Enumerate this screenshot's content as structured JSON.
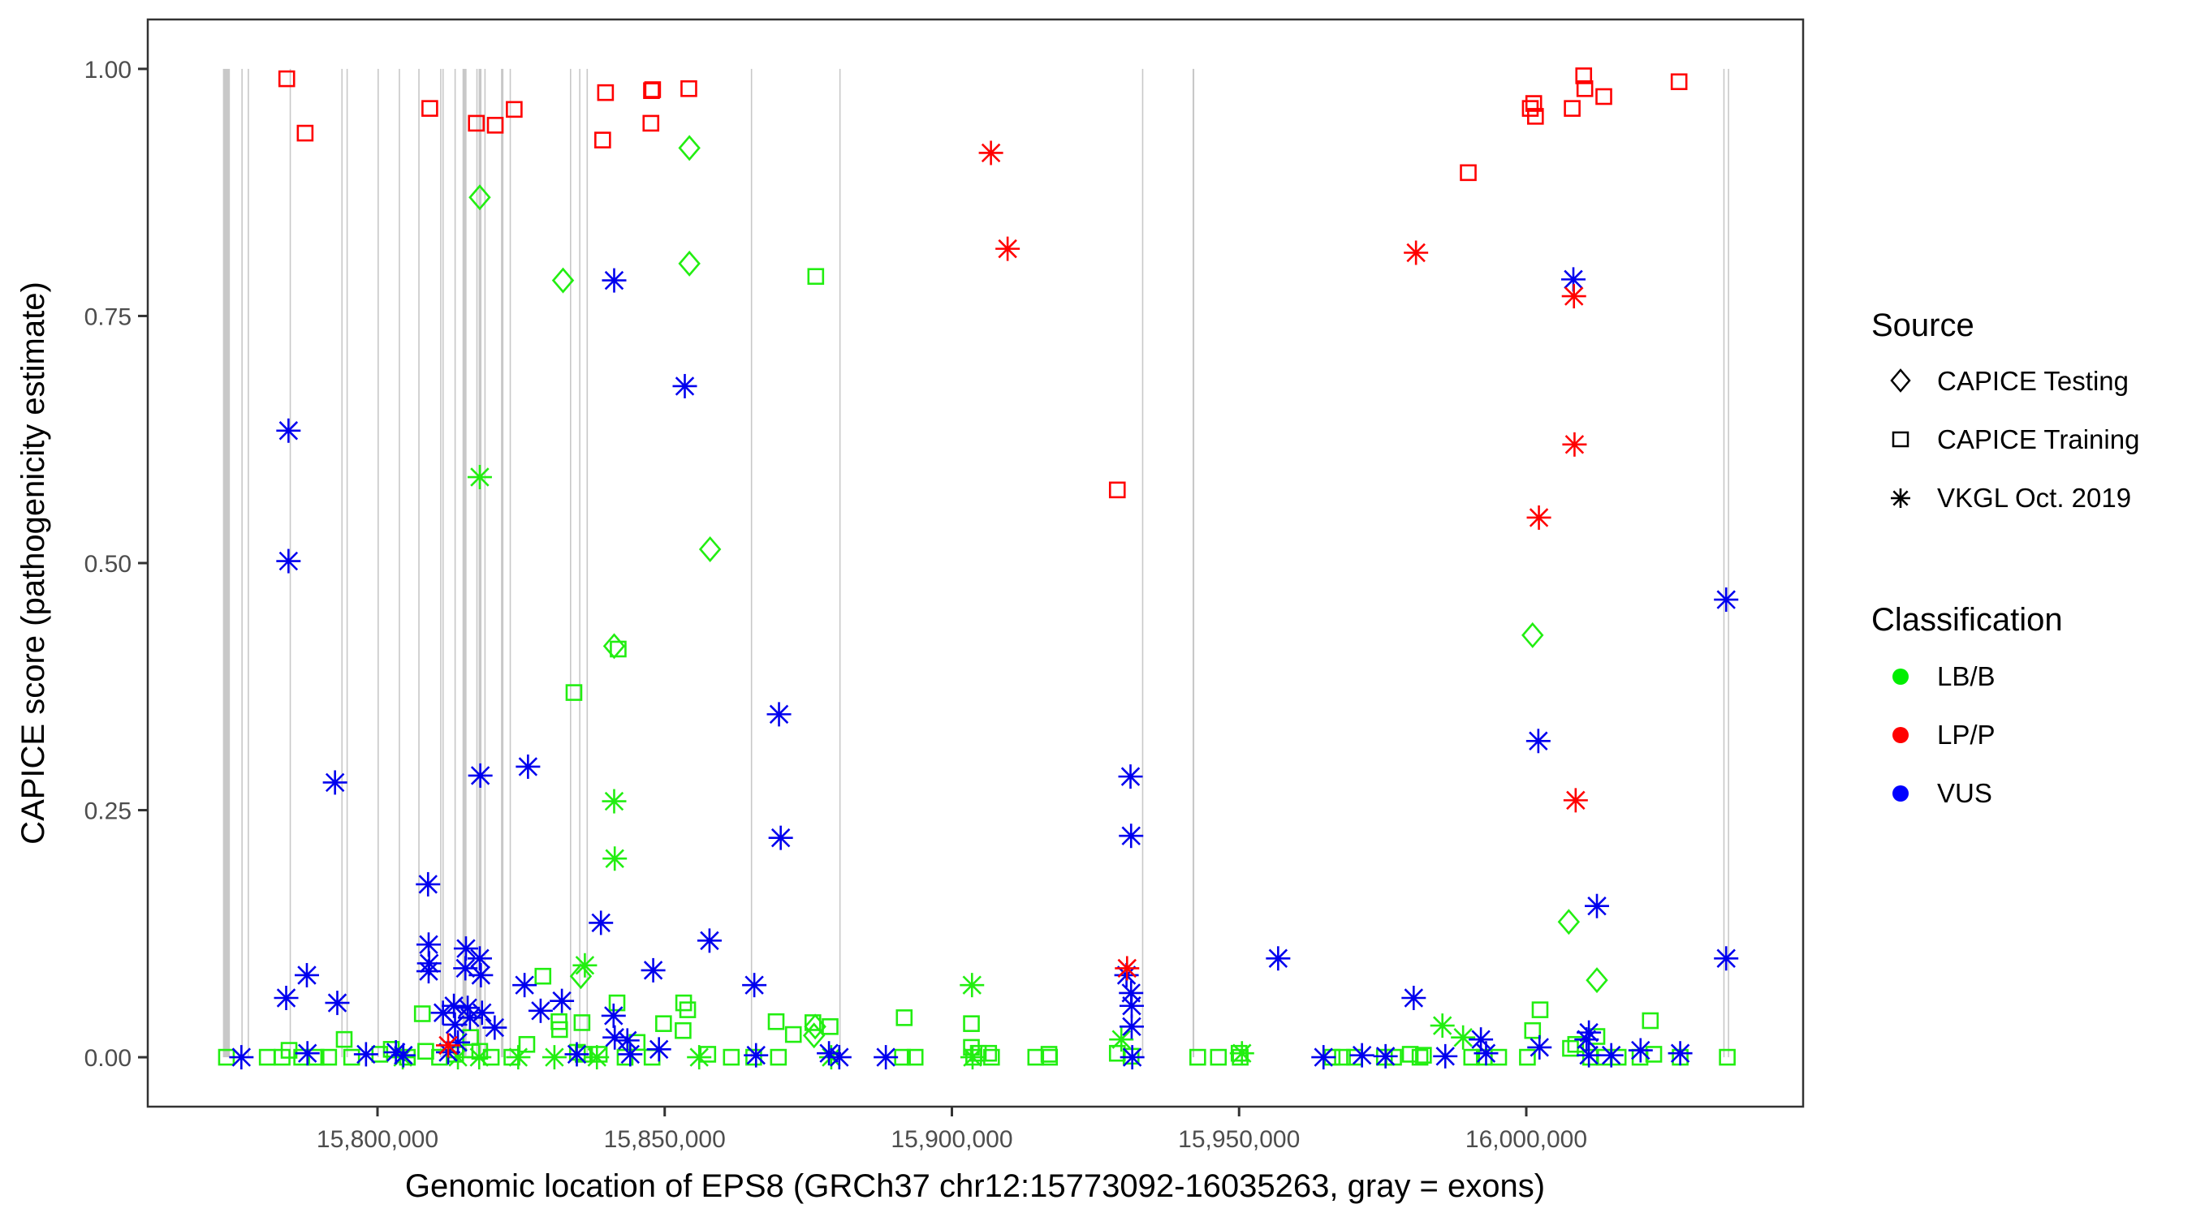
{
  "chart_data": {
    "type": "scatter",
    "title": "",
    "xlabel": "Genomic location of EPS8 (GRCh37 chr12:15773092-16035263, gray = exons)",
    "ylabel": "CAPICE score (pathogenicity estimate)",
    "xlim": [
      15760000,
      16048200
    ],
    "ylim": [
      -0.05,
      1.05
    ],
    "x_ticks": [
      15800000,
      15850000,
      15900000,
      15950000,
      16000000
    ],
    "x_tick_labels": [
      "15,800,000",
      "15,850,000",
      "15,900,000",
      "15,950,000",
      "16,000,000"
    ],
    "y_ticks": [
      0,
      0.25,
      0.5,
      0.75,
      1.0
    ],
    "y_tick_labels": [
      "0.00",
      "0.25",
      "0.50",
      "0.75",
      "1.00"
    ],
    "grid": false,
    "exons": [
      {
        "start": 15773092,
        "end": 15774300
      },
      {
        "start": 15776300,
        "end": 15776400
      },
      {
        "start": 15777400,
        "end": 15777500
      },
      {
        "start": 15784700,
        "end": 15784800
      },
      {
        "start": 15793700,
        "end": 15793800
      },
      {
        "start": 15794600,
        "end": 15794700
      },
      {
        "start": 15800000,
        "end": 15800100
      },
      {
        "start": 15803700,
        "end": 15803800
      },
      {
        "start": 15807100,
        "end": 15807200
      },
      {
        "start": 15810900,
        "end": 15811000
      },
      {
        "start": 15811300,
        "end": 15811400
      },
      {
        "start": 15813400,
        "end": 15813500
      },
      {
        "start": 15814800,
        "end": 15815500
      },
      {
        "start": 15817200,
        "end": 15817300
      },
      {
        "start": 15817600,
        "end": 15818100
      },
      {
        "start": 15818600,
        "end": 15818700
      },
      {
        "start": 15821500,
        "end": 15821600
      },
      {
        "start": 15821700,
        "end": 15821800
      },
      {
        "start": 15823000,
        "end": 15823100
      },
      {
        "start": 15833500,
        "end": 15833600
      },
      {
        "start": 15835100,
        "end": 15835200
      },
      {
        "start": 15836400,
        "end": 15836500
      },
      {
        "start": 15865000,
        "end": 15865100
      },
      {
        "start": 15880400,
        "end": 15880500
      },
      {
        "start": 15933100,
        "end": 15933200
      },
      {
        "start": 15941900,
        "end": 15942200
      },
      {
        "start": 16034300,
        "end": 16034400
      },
      {
        "start": 16035100,
        "end": 16035263
      }
    ],
    "legends": {
      "source": {
        "title": "Source",
        "position": "right",
        "entries": [
          {
            "key": "testing",
            "label": "CAPICE Testing",
            "shape": "diamond"
          },
          {
            "key": "training",
            "label": "CAPICE Training",
            "shape": "square"
          },
          {
            "key": "vkgl",
            "label": "VKGL Oct. 2019",
            "shape": "asterisk"
          }
        ]
      },
      "classification": {
        "title": "Classification",
        "position": "right",
        "entries": [
          {
            "key": "LB/B",
            "label": "LB/B",
            "color": "#00ee00"
          },
          {
            "key": "LP/P",
            "label": "LP/P",
            "color": "#ff0000"
          },
          {
            "key": "VUS",
            "label": "VUS",
            "color": "#0000ff"
          }
        ]
      }
    },
    "colors": {
      "LB/B": "#22ee11",
      "LP/P": "#ff0000",
      "VUS": "#0000ee",
      "exon": "#c8c8c8"
    },
    "series": [
      {
        "name": "CAPICE Training / LP/P",
        "source": "training",
        "class": "LP/P",
        "points": [
          [
            15784200,
            0.99
          ],
          [
            15787400,
            0.935
          ],
          [
            15809100,
            0.96
          ],
          [
            15817200,
            0.945
          ],
          [
            15820500,
            0.943
          ],
          [
            15823800,
            0.959
          ],
          [
            15839200,
            0.928
          ],
          [
            15839700,
            0.976
          ],
          [
            15847600,
            0.945
          ],
          [
            15847700,
            0.978
          ],
          [
            15847900,
            0.979
          ],
          [
            15854200,
            0.98
          ],
          [
            15928800,
            0.574
          ],
          [
            15989900,
            0.895
          ],
          [
            16000700,
            0.96
          ],
          [
            16001300,
            0.965
          ],
          [
            16001600,
            0.952
          ],
          [
            16008000,
            0.96
          ],
          [
            16010000,
            0.993
          ],
          [
            16010200,
            0.98
          ],
          [
            16013500,
            0.972
          ],
          [
            16026600,
            0.987
          ]
        ]
      },
      {
        "name": "CAPICE Testing / LB/B",
        "source": "testing",
        "class": "LB/B",
        "points": [
          [
            15817800,
            0.87
          ],
          [
            15832300,
            0.786
          ],
          [
            15835400,
            0.082
          ],
          [
            15841200,
            0.416
          ],
          [
            15854300,
            0.92
          ],
          [
            15854300,
            0.803
          ],
          [
            15857900,
            0.514
          ],
          [
            15876000,
            0.022
          ],
          [
            15876200,
            0.031
          ],
          [
            16001100,
            0.427
          ],
          [
            16007400,
            0.137
          ],
          [
            16012300,
            0.078
          ]
        ]
      },
      {
        "name": "CAPICE Training / LB/B",
        "source": "training",
        "class": "LB/B",
        "points": [
          [
            15773700,
            0.0
          ],
          [
            15780800,
            0.0
          ],
          [
            15783400,
            0.0
          ],
          [
            15784600,
            0.007
          ],
          [
            15786800,
            0.0
          ],
          [
            15789300,
            0.0
          ],
          [
            15791500,
            0.0
          ],
          [
            15794200,
            0.018
          ],
          [
            15795500,
            0.0
          ],
          [
            15800400,
            0.003
          ],
          [
            15802400,
            0.008
          ],
          [
            15805200,
            0.0
          ],
          [
            15807800,
            0.044
          ],
          [
            15808400,
            0.006
          ],
          [
            15810800,
            0.0
          ],
          [
            15813600,
            0.003
          ],
          [
            15816200,
            0.02
          ],
          [
            15817800,
            0.006
          ],
          [
            15819800,
            0.0
          ],
          [
            15823400,
            0.0
          ],
          [
            15826000,
            0.013
          ],
          [
            15828800,
            0.082
          ],
          [
            15831600,
            0.036
          ],
          [
            15831700,
            0.028
          ],
          [
            15834200,
            0.369
          ],
          [
            15834800,
            0.005
          ],
          [
            15835600,
            0.035
          ],
          [
            15835800,
            0.003
          ],
          [
            15838600,
            0.003
          ],
          [
            15841700,
            0.055
          ],
          [
            15841900,
            0.413
          ],
          [
            15843100,
            0.0
          ],
          [
            15845200,
            0.015
          ],
          [
            15847800,
            0.0
          ],
          [
            15849800,
            0.034
          ],
          [
            15853200,
            0.027
          ],
          [
            15853300,
            0.055
          ],
          [
            15854000,
            0.048
          ],
          [
            15857500,
            0.003
          ],
          [
            15861600,
            0.0
          ],
          [
            15865500,
            0.0
          ],
          [
            15869400,
            0.036
          ],
          [
            15869800,
            0.0
          ],
          [
            15872400,
            0.023
          ],
          [
            15875800,
            0.035
          ],
          [
            15876300,
            0.79
          ],
          [
            15878800,
            0.031
          ],
          [
            15891700,
            0.04
          ],
          [
            15891400,
            0.0
          ],
          [
            15893600,
            0.0
          ],
          [
            15903400,
            0.034
          ],
          [
            15903400,
            0.01
          ],
          [
            15903800,
            0.0
          ],
          [
            15904600,
            0.004
          ],
          [
            15906400,
            0.004
          ],
          [
            15906900,
            0.0
          ],
          [
            15914600,
            0.0
          ],
          [
            15916900,
            0.003
          ],
          [
            15917000,
            0.0
          ],
          [
            15928800,
            0.004
          ],
          [
            15931200,
            0.001
          ],
          [
            15942800,
            0.0
          ],
          [
            15946400,
            0.0
          ],
          [
            15950000,
            0.004
          ],
          [
            15950200,
            0.0
          ],
          [
            15966200,
            0.0
          ],
          [
            15968000,
            0.0
          ],
          [
            15970100,
            0.0
          ],
          [
            15975300,
            0.0
          ],
          [
            15976900,
            0.0
          ],
          [
            15979800,
            0.003
          ],
          [
            15981500,
            0.0
          ],
          [
            15982100,
            0.002
          ],
          [
            15990500,
            0.0
          ],
          [
            15992700,
            0.0
          ],
          [
            15995200,
            0.0
          ],
          [
            16000200,
            0.0
          ],
          [
            16001100,
            0.027
          ],
          [
            16002400,
            0.048
          ],
          [
            16007700,
            0.009
          ],
          [
            16008600,
            0.013
          ],
          [
            16011200,
            0.0
          ],
          [
            16012300,
            0.021
          ],
          [
            16013600,
            0.0
          ],
          [
            16016000,
            0.0
          ],
          [
            16019800,
            0.0
          ],
          [
            16021600,
            0.037
          ],
          [
            16022200,
            0.003
          ],
          [
            16026800,
            0.0
          ],
          [
            16035000,
            0.0
          ]
        ]
      },
      {
        "name": "VKGL / LB/B",
        "source": "vkgl",
        "class": "LB/B",
        "points": [
          [
            15817800,
            0.587
          ],
          [
            15836100,
            0.093
          ],
          [
            15841200,
            0.259
          ],
          [
            15841300,
            0.201
          ],
          [
            15903500,
            0.073
          ],
          [
            15929500,
            0.018
          ],
          [
            15985400,
            0.032
          ],
          [
            15989000,
            0.02
          ],
          [
            15804400,
            0.0
          ],
          [
            15814000,
            0.0
          ],
          [
            15817700,
            0.0
          ],
          [
            15824500,
            0.0
          ],
          [
            15830800,
            0.0
          ],
          [
            15838200,
            0.0
          ],
          [
            15856000,
            0.0
          ],
          [
            15879000,
            0.0
          ],
          [
            15903600,
            0.0
          ],
          [
            15950500,
            0.004
          ]
        ]
      },
      {
        "name": "VKGL / LP/P",
        "source": "vkgl",
        "class": "LP/P",
        "points": [
          [
            15906800,
            0.915
          ],
          [
            15909700,
            0.818
          ],
          [
            15930500,
            0.09
          ],
          [
            15980800,
            0.814
          ],
          [
            16002200,
            0.546
          ],
          [
            16008300,
            0.77
          ],
          [
            16008400,
            0.62
          ],
          [
            16008600,
            0.26
          ],
          [
            15812300,
            0.012
          ]
        ]
      },
      {
        "name": "VKGL / VUS",
        "source": "vkgl",
        "class": "VUS",
        "points": [
          [
            15776300,
            0.0
          ],
          [
            15784100,
            0.06
          ],
          [
            15784500,
            0.634
          ],
          [
            15784500,
            0.502
          ],
          [
            15787700,
            0.083
          ],
          [
            15787800,
            0.004
          ],
          [
            15792600,
            0.278
          ],
          [
            15793000,
            0.055
          ],
          [
            15798000,
            0.003
          ],
          [
            15803200,
            0.005
          ],
          [
            15804500,
            0.002
          ],
          [
            15808800,
            0.175
          ],
          [
            15808900,
            0.114
          ],
          [
            15809000,
            0.095
          ],
          [
            15808900,
            0.087
          ],
          [
            15811400,
            0.045
          ],
          [
            15812300,
            0.005
          ],
          [
            15813300,
            0.052
          ],
          [
            15813500,
            0.033
          ],
          [
            15814000,
            0.015
          ],
          [
            15815400,
            0.11
          ],
          [
            15815300,
            0.09
          ],
          [
            15815700,
            0.05
          ],
          [
            15816100,
            0.04
          ],
          [
            15817800,
            0.1
          ],
          [
            15817900,
            0.285
          ],
          [
            15818000,
            0.083
          ],
          [
            15818200,
            0.045
          ],
          [
            15820400,
            0.03
          ],
          [
            15825600,
            0.073
          ],
          [
            15826200,
            0.294
          ],
          [
            15828400,
            0.047
          ],
          [
            15832100,
            0.057
          ],
          [
            15834700,
            0.003
          ],
          [
            15838900,
            0.136
          ],
          [
            15841200,
            0.786
          ],
          [
            15841100,
            0.042
          ],
          [
            15841300,
            0.02
          ],
          [
            15844000,
            0.003
          ],
          [
            15843500,
            0.017
          ],
          [
            15848000,
            0.088
          ],
          [
            15849000,
            0.008
          ],
          [
            15853500,
            0.679
          ],
          [
            15857800,
            0.118
          ],
          [
            15865600,
            0.073
          ],
          [
            15865900,
            0.002
          ],
          [
            15869900,
            0.347
          ],
          [
            15870200,
            0.222
          ],
          [
            15878600,
            0.004
          ],
          [
            15880400,
            0.0
          ],
          [
            15888500,
            0.0
          ],
          [
            15930400,
            0.083
          ],
          [
            15931100,
            0.284
          ],
          [
            15931200,
            0.224
          ],
          [
            15931200,
            0.065
          ],
          [
            15931300,
            0.052
          ],
          [
            15931300,
            0.031
          ],
          [
            15931400,
            0.0
          ],
          [
            15956800,
            0.1
          ],
          [
            15964700,
            0.0
          ],
          [
            15971400,
            0.002
          ],
          [
            15975500,
            0.001
          ],
          [
            15980400,
            0.06
          ],
          [
            15985900,
            0.001
          ],
          [
            15992100,
            0.018
          ],
          [
            15993000,
            0.004
          ],
          [
            16002100,
            0.32
          ],
          [
            16002300,
            0.01
          ],
          [
            16008200,
            0.787
          ],
          [
            16010500,
            0.018
          ],
          [
            16010900,
            0.002
          ],
          [
            16010900,
            0.025
          ],
          [
            16012300,
            0.153
          ],
          [
            16014800,
            0.002
          ],
          [
            16019900,
            0.007
          ],
          [
            16026800,
            0.004
          ],
          [
            16034800,
            0.463
          ],
          [
            16034800,
            0.1
          ]
        ]
      }
    ]
  }
}
